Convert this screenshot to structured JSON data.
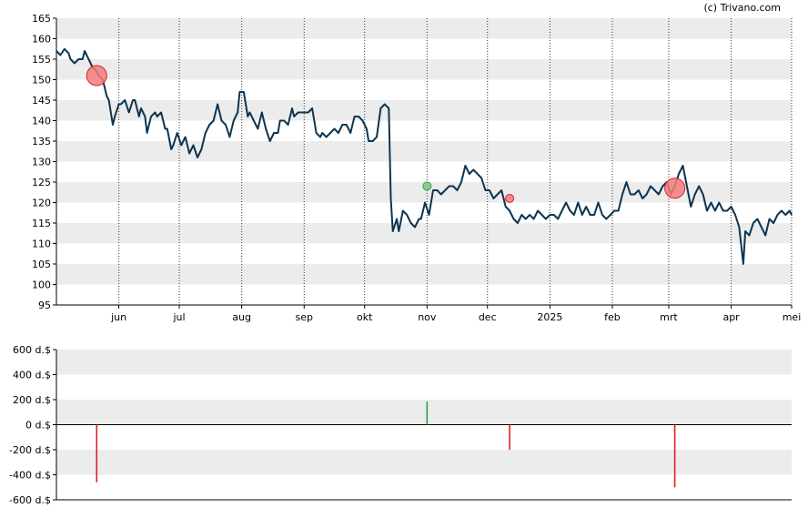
{
  "copyright": "(c) Trivano.com",
  "colors": {
    "price_line": "#0d3550",
    "band": "#ececec",
    "sell": "#e02020",
    "buy": "#2e9e3e",
    "sell_marker": "#f47c7c",
    "buy_marker": "#7fc98a"
  },
  "chart_data": [
    {
      "type": "line",
      "title": "",
      "xlabel": "",
      "ylabel": "",
      "ylim": [
        95,
        165
      ],
      "yticks": [
        "95",
        "100",
        "105",
        "110",
        "115",
        "120",
        "125",
        "130",
        "135",
        "140",
        "145",
        "150",
        "155",
        "160",
        "165"
      ],
      "xticks": [
        {
          "label": "jun",
          "date": "2024-06-01"
        },
        {
          "label": "jul",
          "date": "2024-07-01"
        },
        {
          "label": "aug",
          "date": "2024-08-01"
        },
        {
          "label": "sep",
          "date": "2024-09-01"
        },
        {
          "label": "okt",
          "date": "2024-10-01"
        },
        {
          "label": "nov",
          "date": "2024-11-01"
        },
        {
          "label": "dec",
          "date": "2024-12-01"
        },
        {
          "label": "2025",
          "date": "2025-01-01"
        },
        {
          "label": "feb",
          "date": "2025-02-01"
        },
        {
          "label": "mrt",
          "date": "2025-03-01"
        },
        {
          "label": "apr",
          "date": "2025-04-01"
        },
        {
          "label": "mei",
          "date": "2025-05-01"
        }
      ],
      "xlim": [
        "2024-05-01",
        "2025-05-01"
      ],
      "grid": "dotted vertical lines at month ticks, alternating horizontal bands",
      "series": [
        {
          "points": [
            [
              "2024-05-01",
              157
            ],
            [
              "2024-05-03",
              156
            ],
            [
              "2024-05-05",
              157.5
            ],
            [
              "2024-05-07",
              156.5
            ],
            [
              "2024-05-08",
              155
            ],
            [
              "2024-05-10",
              154
            ],
            [
              "2024-05-12",
              155
            ],
            [
              "2024-05-14",
              155
            ],
            [
              "2024-05-15",
              157
            ],
            [
              "2024-05-17",
              155
            ],
            [
              "2024-05-19",
              153
            ],
            [
              "2024-05-21",
              152
            ],
            [
              "2024-05-22",
              151
            ],
            [
              "2024-05-24",
              150
            ],
            [
              "2024-05-26",
              146
            ],
            [
              "2024-05-27",
              145
            ],
            [
              "2024-05-29",
              139
            ],
            [
              "2024-05-30",
              141
            ],
            [
              "2024-06-01",
              144
            ],
            [
              "2024-06-02",
              144
            ],
            [
              "2024-06-04",
              145
            ],
            [
              "2024-06-06",
              142
            ],
            [
              "2024-06-08",
              145
            ],
            [
              "2024-06-09",
              145
            ],
            [
              "2024-06-11",
              141
            ],
            [
              "2024-06-12",
              143
            ],
            [
              "2024-06-14",
              141
            ],
            [
              "2024-06-15",
              137
            ],
            [
              "2024-06-17",
              141
            ],
            [
              "2024-06-19",
              142
            ],
            [
              "2024-06-20",
              141
            ],
            [
              "2024-06-22",
              142
            ],
            [
              "2024-06-24",
              138
            ],
            [
              "2024-06-25",
              138
            ],
            [
              "2024-06-27",
              133
            ],
            [
              "2024-06-28",
              134
            ],
            [
              "2024-06-30",
              137
            ],
            [
              "2024-07-02",
              134
            ],
            [
              "2024-07-04",
              136
            ],
            [
              "2024-07-06",
              132
            ],
            [
              "2024-07-08",
              134
            ],
            [
              "2024-07-10",
              131
            ],
            [
              "2024-07-12",
              133
            ],
            [
              "2024-07-14",
              137
            ],
            [
              "2024-07-16",
              139
            ],
            [
              "2024-07-18",
              140
            ],
            [
              "2024-07-20",
              144
            ],
            [
              "2024-07-22",
              140
            ],
            [
              "2024-07-24",
              139
            ],
            [
              "2024-07-26",
              136
            ],
            [
              "2024-07-28",
              140
            ],
            [
              "2024-07-30",
              142
            ],
            [
              "2024-07-31",
              147
            ],
            [
              "2024-08-02",
              147
            ],
            [
              "2024-08-04",
              141
            ],
            [
              "2024-08-05",
              142
            ],
            [
              "2024-08-07",
              140
            ],
            [
              "2024-08-09",
              138
            ],
            [
              "2024-08-11",
              142
            ],
            [
              "2024-08-13",
              138
            ],
            [
              "2024-08-15",
              135
            ],
            [
              "2024-08-17",
              137
            ],
            [
              "2024-08-19",
              137
            ],
            [
              "2024-08-20",
              140
            ],
            [
              "2024-08-22",
              140
            ],
            [
              "2024-08-24",
              139
            ],
            [
              "2024-08-26",
              143
            ],
            [
              "2024-08-27",
              141
            ],
            [
              "2024-08-29",
              142
            ],
            [
              "2024-08-31",
              142
            ],
            [
              "2024-09-02",
              142
            ],
            [
              "2024-09-03",
              142
            ],
            [
              "2024-09-05",
              143
            ],
            [
              "2024-09-07",
              137
            ],
            [
              "2024-09-09",
              136
            ],
            [
              "2024-09-10",
              137
            ],
            [
              "2024-09-12",
              136
            ],
            [
              "2024-09-14",
              137
            ],
            [
              "2024-09-16",
              138
            ],
            [
              "2024-09-18",
              137
            ],
            [
              "2024-09-20",
              139
            ],
            [
              "2024-09-22",
              139
            ],
            [
              "2024-09-24",
              137
            ],
            [
              "2024-09-26",
              141
            ],
            [
              "2024-09-28",
              141
            ],
            [
              "2024-09-30",
              140
            ],
            [
              "2024-10-02",
              138
            ],
            [
              "2024-10-03",
              135
            ],
            [
              "2024-10-05",
              135
            ],
            [
              "2024-10-07",
              136
            ],
            [
              "2024-10-09",
              143
            ],
            [
              "2024-10-11",
              144
            ],
            [
              "2024-10-13",
              143
            ],
            [
              "2024-10-14",
              121
            ],
            [
              "2024-10-15",
              113
            ],
            [
              "2024-10-17",
              116
            ],
            [
              "2024-10-18",
              113
            ],
            [
              "2024-10-20",
              118
            ],
            [
              "2024-10-22",
              117
            ],
            [
              "2024-10-24",
              115
            ],
            [
              "2024-10-26",
              114
            ],
            [
              "2024-10-28",
              116
            ],
            [
              "2024-10-29",
              116
            ],
            [
              "2024-10-31",
              120
            ],
            [
              "2024-11-02",
              117
            ],
            [
              "2024-11-04",
              123
            ],
            [
              "2024-11-06",
              123
            ],
            [
              "2024-11-08",
              122
            ],
            [
              "2024-11-10",
              123
            ],
            [
              "2024-11-12",
              124
            ],
            [
              "2024-11-14",
              124
            ],
            [
              "2024-11-16",
              123
            ],
            [
              "2024-11-18",
              125
            ],
            [
              "2024-11-20",
              129
            ],
            [
              "2024-11-22",
              127
            ],
            [
              "2024-11-24",
              128
            ],
            [
              "2024-11-26",
              127
            ],
            [
              "2024-11-28",
              126
            ],
            [
              "2024-11-30",
              123
            ],
            [
              "2024-12-02",
              123
            ],
            [
              "2024-12-04",
              121
            ],
            [
              "2024-12-06",
              122
            ],
            [
              "2024-12-08",
              123
            ],
            [
              "2024-12-10",
              119
            ],
            [
              "2024-12-12",
              118
            ],
            [
              "2024-12-14",
              116
            ],
            [
              "2024-12-16",
              115
            ],
            [
              "2024-12-18",
              117
            ],
            [
              "2024-12-20",
              116
            ],
            [
              "2024-12-22",
              117
            ],
            [
              "2024-12-24",
              116
            ],
            [
              "2024-12-26",
              118
            ],
            [
              "2024-12-28",
              117
            ],
            [
              "2024-12-30",
              116
            ],
            [
              "2025-01-01",
              117
            ],
            [
              "2025-01-03",
              117
            ],
            [
              "2025-01-05",
              116
            ],
            [
              "2025-01-07",
              118
            ],
            [
              "2025-01-09",
              120
            ],
            [
              "2025-01-11",
              118
            ],
            [
              "2025-01-13",
              117
            ],
            [
              "2025-01-15",
              120
            ],
            [
              "2025-01-17",
              117
            ],
            [
              "2025-01-19",
              119
            ],
            [
              "2025-01-21",
              117
            ],
            [
              "2025-01-23",
              117
            ],
            [
              "2025-01-25",
              120
            ],
            [
              "2025-01-27",
              117
            ],
            [
              "2025-01-29",
              116
            ],
            [
              "2025-01-31",
              117
            ],
            [
              "2025-02-02",
              118
            ],
            [
              "2025-02-04",
              118
            ],
            [
              "2025-02-06",
              122
            ],
            [
              "2025-02-08",
              125
            ],
            [
              "2025-02-10",
              122
            ],
            [
              "2025-02-12",
              122
            ],
            [
              "2025-02-14",
              123
            ],
            [
              "2025-02-16",
              121
            ],
            [
              "2025-02-18",
              122
            ],
            [
              "2025-02-20",
              124
            ],
            [
              "2025-02-22",
              123
            ],
            [
              "2025-02-24",
              122
            ],
            [
              "2025-02-26",
              124
            ],
            [
              "2025-02-28",
              125
            ],
            [
              "2025-03-02",
              122
            ],
            [
              "2025-03-04",
              124
            ],
            [
              "2025-03-06",
              127
            ],
            [
              "2025-03-08",
              129
            ],
            [
              "2025-03-10",
              124
            ],
            [
              "2025-03-12",
              119
            ],
            [
              "2025-03-14",
              122
            ],
            [
              "2025-03-16",
              124
            ],
            [
              "2025-03-18",
              122
            ],
            [
              "2025-03-20",
              118
            ],
            [
              "2025-03-22",
              120
            ],
            [
              "2025-03-24",
              118
            ],
            [
              "2025-03-26",
              120
            ],
            [
              "2025-03-28",
              118
            ],
            [
              "2025-03-30",
              118
            ],
            [
              "2025-04-01",
              119
            ],
            [
              "2025-04-03",
              117
            ],
            [
              "2025-04-05",
              114
            ],
            [
              "2025-04-07",
              105
            ],
            [
              "2025-04-08",
              113
            ],
            [
              "2025-04-10",
              112
            ],
            [
              "2025-04-12",
              115
            ],
            [
              "2025-04-14",
              116
            ],
            [
              "2025-04-16",
              114
            ],
            [
              "2025-04-18",
              112
            ],
            [
              "2025-04-20",
              116
            ],
            [
              "2025-04-22",
              115
            ],
            [
              "2025-04-24",
              117
            ],
            [
              "2025-04-26",
              118
            ],
            [
              "2025-04-28",
              117
            ],
            [
              "2025-04-30",
              118
            ],
            [
              "2025-05-01",
              117
            ]
          ]
        }
      ],
      "markers": [
        {
          "date": "2024-05-21",
          "value": 151,
          "kind": "sell",
          "size": "large"
        },
        {
          "date": "2024-11-01",
          "value": 124,
          "kind": "buy",
          "size": "small"
        },
        {
          "date": "2024-12-12",
          "value": 121,
          "kind": "sell",
          "size": "small"
        },
        {
          "date": "2025-03-04",
          "value": 123.5,
          "kind": "sell",
          "size": "large"
        }
      ]
    },
    {
      "type": "bar",
      "title": "",
      "xlabel": "",
      "ylabel": "",
      "ylim": [
        -600,
        600
      ],
      "yticks": [
        "600 d.$",
        "400 d.$",
        "200 d.$",
        "0 d.$",
        "-200 d.$",
        "-400 d.$",
        "-600 d.$"
      ],
      "xlim": [
        "2024-05-01",
        "2025-05-01"
      ],
      "bars": [
        {
          "date": "2024-05-21",
          "value": -460,
          "kind": "sell"
        },
        {
          "date": "2024-11-01",
          "value": 185,
          "kind": "buy"
        },
        {
          "date": "2024-12-12",
          "value": -200,
          "kind": "sell"
        },
        {
          "date": "2025-03-04",
          "value": -500,
          "kind": "sell"
        }
      ]
    }
  ]
}
